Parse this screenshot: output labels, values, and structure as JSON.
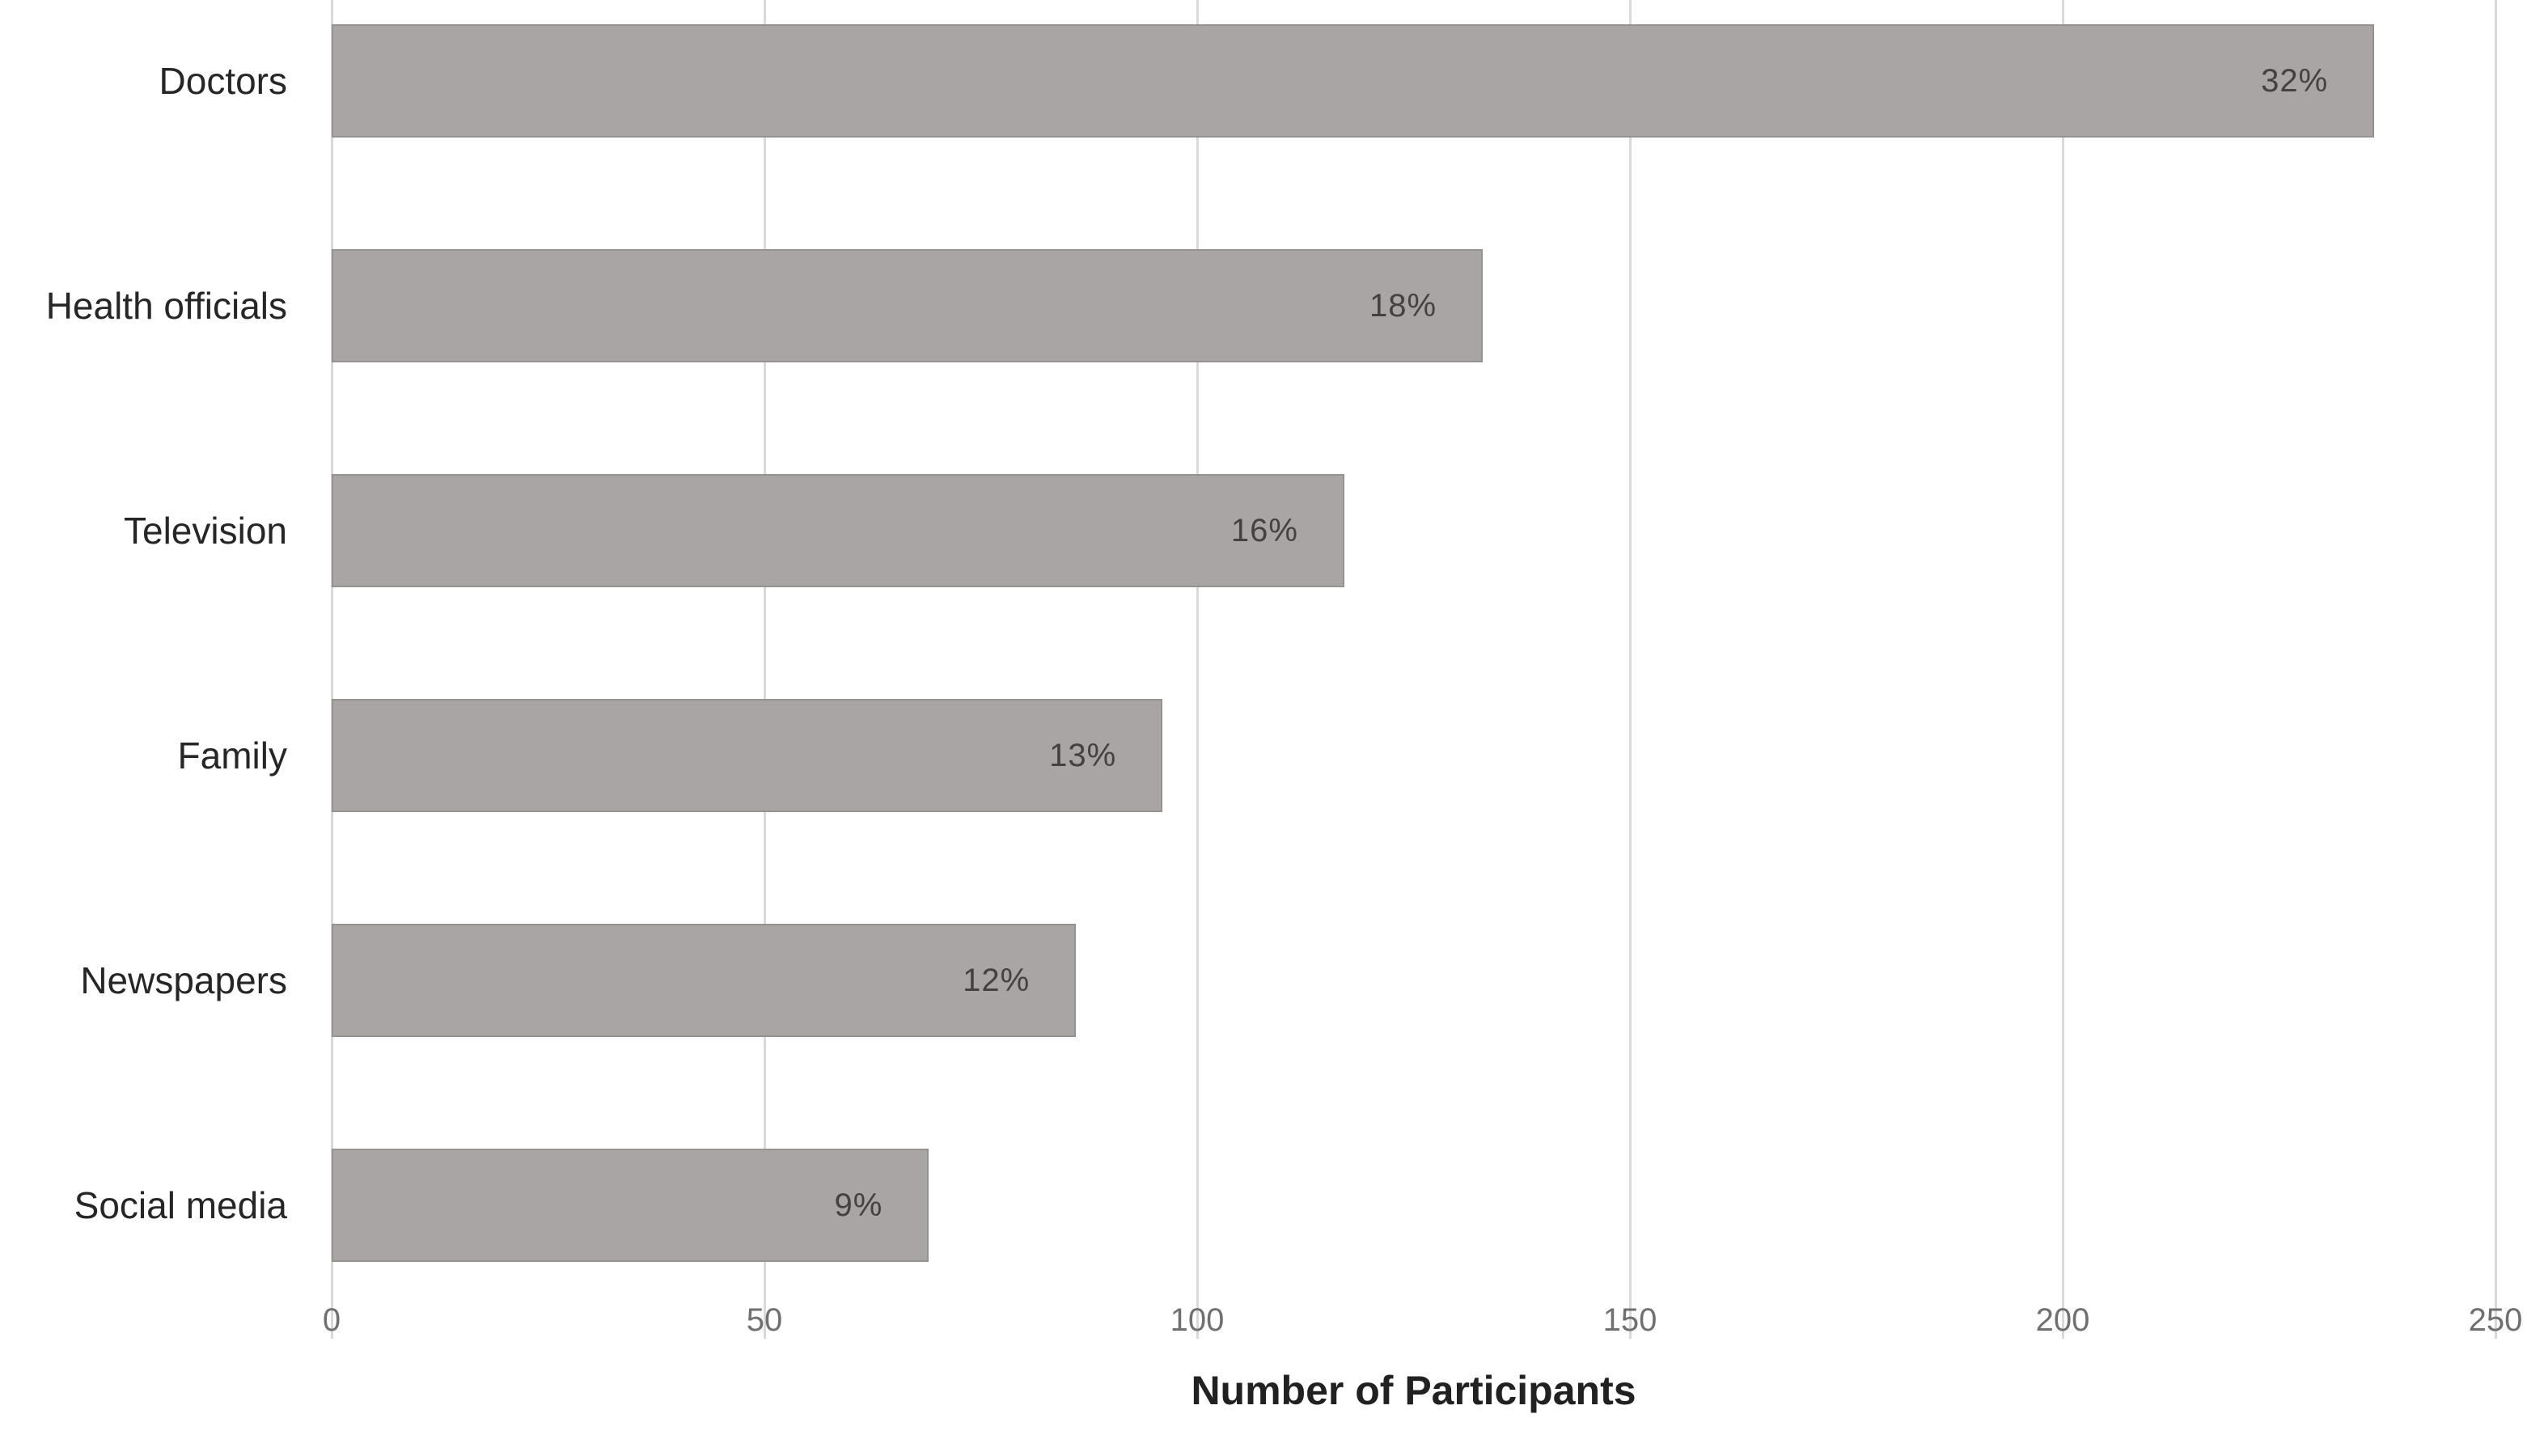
{
  "chart_data": {
    "type": "bar",
    "orientation": "horizontal",
    "title": "",
    "xlabel": "Number of Participants",
    "ylabel": "",
    "categories": [
      "Doctors",
      "Health officials",
      "Television",
      "Family",
      "Newspapers",
      "Social media"
    ],
    "values": [
      236,
      133,
      117,
      96,
      86,
      69
    ],
    "bar_labels": [
      "32%",
      "18%",
      "16%",
      "13%",
      "12%",
      "9%"
    ],
    "x_ticks": [
      0,
      50,
      100,
      150,
      200,
      250
    ],
    "xlim": [
      0,
      250
    ],
    "grid": "vertical-gridlines",
    "legend": "none",
    "colors": {
      "bar_fill": "#a9a5a4",
      "bar_border": "#969290",
      "bar_value_text": "#454140",
      "gridline": "#d9d9d9",
      "tick_text": "#707070",
      "category_text": "#262626",
      "axis_title_text": "#212121",
      "background": "#ffffff"
    }
  }
}
